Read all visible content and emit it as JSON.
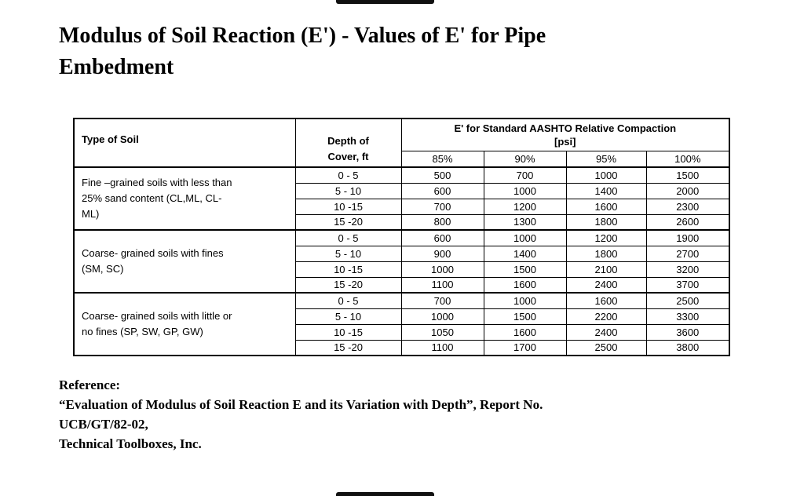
{
  "colors": {
    "background": "#ffffff",
    "text": "#000000",
    "table_border": "#000000",
    "edge_bar": "#111111"
  },
  "page": {
    "title_line1": "Modulus of Soil Reaction (E') - Values of E' for Pipe",
    "title_line2": "Embedment"
  },
  "table": {
    "headers": {
      "type_of_soil": "Type of Soil",
      "depth_of_cover": "Depth of\nCover, ft",
      "compaction_line1": "E' for Standard AASHTO Relative Compaction",
      "compaction_line2": "[psi]",
      "percent_cols": [
        "85%",
        "90%",
        "95%",
        "100%"
      ]
    },
    "groups": [
      {
        "soil": "Fine –grained soils with less than\n25% sand content (CL,ML, CL-\nML)",
        "rows": [
          {
            "depth": "0 - 5",
            "values": [
              "500",
              "700",
              "1000",
              "1500"
            ]
          },
          {
            "depth": "5 - 10",
            "values": [
              "600",
              "1000",
              "1400",
              "2000"
            ]
          },
          {
            "depth": "10 -15",
            "values": [
              "700",
              "1200",
              "1600",
              "2300"
            ]
          },
          {
            "depth": "15 -20",
            "values": [
              "800",
              "1300",
              "1800",
              "2600"
            ]
          }
        ]
      },
      {
        "soil": "Coarse- grained soils with fines\n(SM, SC)",
        "rows": [
          {
            "depth": "0 - 5",
            "values": [
              "600",
              "1000",
              "1200",
              "1900"
            ]
          },
          {
            "depth": "5 - 10",
            "values": [
              "900",
              "1400",
              "1800",
              "2700"
            ]
          },
          {
            "depth": "10 -15",
            "values": [
              "1000",
              "1500",
              "2100",
              "3200"
            ]
          },
          {
            "depth": "15 -20",
            "values": [
              "1100",
              "1600",
              "2400",
              "3700"
            ]
          }
        ]
      },
      {
        "soil": "Coarse- grained soils with little or\nno fines (SP, SW, GP, GW)",
        "rows": [
          {
            "depth": "0 - 5",
            "values": [
              "700",
              "1000",
              "1600",
              "2500"
            ]
          },
          {
            "depth": "5 - 10",
            "values": [
              "1000",
              "1500",
              "2200",
              "3300"
            ]
          },
          {
            "depth": "10 -15",
            "values": [
              "1050",
              "1600",
              "2400",
              "3600"
            ]
          },
          {
            "depth": "15 -20",
            "values": [
              "1100",
              "1700",
              "2500",
              "3800"
            ]
          }
        ]
      }
    ]
  },
  "reference": {
    "label": "Reference:",
    "line1": "“Evaluation of Modulus of Soil Reaction E and its Variation with Depth”, Report No.",
    "line2": "UCB/GT/82-02,",
    "line3": "Technical Toolboxes, Inc."
  }
}
